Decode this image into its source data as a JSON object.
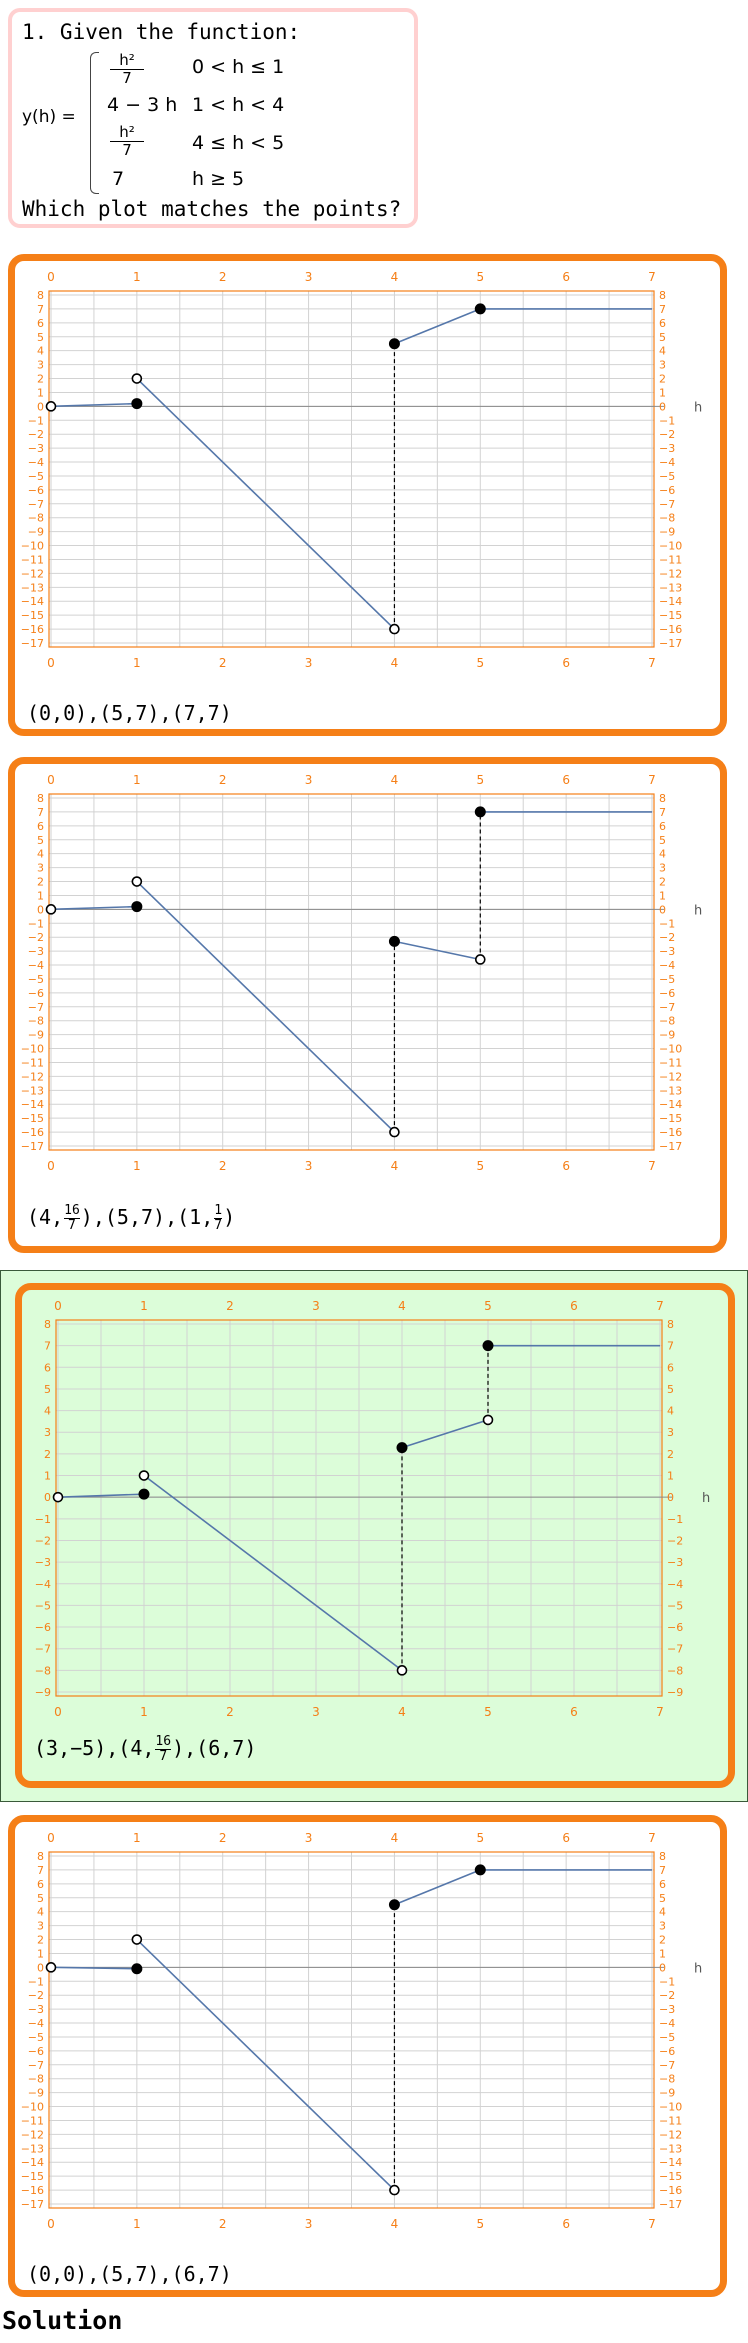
{
  "question": {
    "title": "1. Given the function:",
    "lhs": "y(h) =",
    "pieces": [
      {
        "expr_num": "h²",
        "expr_den": "7",
        "cond": "0 < h ≤ 1"
      },
      {
        "expr": "4 − 3 h",
        "cond": "1 < h < 4"
      },
      {
        "expr_num": "h²",
        "expr_den": "7",
        "cond": "4 ≤ h < 5"
      },
      {
        "expr": "7",
        "cond": "h ≥ 5"
      }
    ],
    "ask": "Which plot matches the points?"
  },
  "chart_data": [
    {
      "type": "line",
      "x_ticks": [
        0,
        1,
        2,
        3,
        4,
        5,
        6,
        7
      ],
      "ylim": [
        -17,
        8
      ],
      "y_tick_step": 1,
      "y_axis_label": "h",
      "segments": [
        {
          "points": [
            [
              0,
              0
            ],
            [
              1,
              0.2
            ]
          ]
        },
        {
          "points": [
            [
              1,
              2
            ],
            [
              4,
              -16
            ]
          ]
        },
        {
          "points": [
            [
              4,
              4.5
            ],
            [
              5,
              7
            ]
          ]
        },
        {
          "points": [
            [
              5,
              7
            ],
            [
              7,
              7
            ]
          ]
        }
      ],
      "jumps": [
        [
          4,
          -16,
          4,
          4.5
        ]
      ],
      "open_points": [
        [
          0,
          0
        ],
        [
          1,
          2
        ],
        [
          4,
          -16
        ]
      ],
      "closed_points": [
        [
          1,
          0.2
        ],
        [
          4,
          4.5
        ],
        [
          5,
          7
        ]
      ],
      "caption": [
        {
          "t": "(0,0)"
        },
        {
          "t": ","
        },
        {
          "t": "(5,7)"
        },
        {
          "t": ","
        },
        {
          "t": "(7,7)"
        }
      ]
    },
    {
      "type": "line",
      "x_ticks": [
        0,
        1,
        2,
        3,
        4,
        5,
        6,
        7
      ],
      "ylim": [
        -17,
        8
      ],
      "y_tick_step": 1,
      "y_axis_label": "h",
      "segments": [
        {
          "points": [
            [
              0,
              0
            ],
            [
              1,
              0.2
            ]
          ]
        },
        {
          "points": [
            [
              1,
              2
            ],
            [
              4,
              -16
            ]
          ]
        },
        {
          "points": [
            [
              4,
              -2.3
            ],
            [
              5,
              -3.6
            ]
          ]
        },
        {
          "points": [
            [
              5,
              7
            ],
            [
              7,
              7
            ]
          ]
        }
      ],
      "jumps": [
        [
          4,
          -16,
          4,
          -2.3
        ],
        [
          5,
          -3.6,
          5,
          7
        ]
      ],
      "open_points": [
        [
          0,
          0
        ],
        [
          1,
          2
        ],
        [
          4,
          -16
        ],
        [
          5,
          -3.6
        ]
      ],
      "closed_points": [
        [
          1,
          0.2
        ],
        [
          4,
          -2.3
        ],
        [
          5,
          7
        ]
      ],
      "caption": [
        {
          "t": "(4,"
        },
        {
          "n": "16",
          "d": "7"
        },
        {
          "t": ")"
        },
        {
          "t": ","
        },
        {
          "t": "(5,7)"
        },
        {
          "t": ","
        },
        {
          "t": "(1,"
        },
        {
          "n": "1",
          "d": "7"
        },
        {
          "t": ")"
        }
      ]
    },
    {
      "type": "line",
      "x_ticks": [
        0,
        1,
        2,
        3,
        4,
        5,
        6,
        7
      ],
      "ylim": [
        -9,
        8
      ],
      "y_tick_step": 1,
      "y_axis_label": "h",
      "segments": [
        {
          "points": [
            [
              0,
              0
            ],
            [
              1,
              0.14
            ]
          ]
        },
        {
          "points": [
            [
              1,
              1
            ],
            [
              4,
              -8
            ]
          ]
        },
        {
          "points": [
            [
              4,
              2.29
            ],
            [
              5,
              3.57
            ]
          ]
        },
        {
          "points": [
            [
              5,
              7
            ],
            [
              7,
              7
            ]
          ]
        }
      ],
      "jumps": [
        [
          4,
          -8,
          4,
          2.29
        ],
        [
          5,
          3.57,
          5,
          7
        ]
      ],
      "open_points": [
        [
          0,
          0
        ],
        [
          1,
          1
        ],
        [
          4,
          -8
        ],
        [
          5,
          3.57
        ]
      ],
      "closed_points": [
        [
          1,
          0.14
        ],
        [
          4,
          2.29
        ],
        [
          5,
          7
        ]
      ],
      "caption": [
        {
          "t": "(3,−5)"
        },
        {
          "t": ","
        },
        {
          "t": "(4,"
        },
        {
          "n": "16",
          "d": "7"
        },
        {
          "t": ")"
        },
        {
          "t": ","
        },
        {
          "t": "(6,7)"
        }
      ]
    },
    {
      "type": "line",
      "x_ticks": [
        0,
        1,
        2,
        3,
        4,
        5,
        6,
        7
      ],
      "ylim": [
        -17,
        8
      ],
      "y_tick_step": 1,
      "y_axis_label": "h",
      "segments": [
        {
          "points": [
            [
              0,
              0
            ],
            [
              1,
              -0.1
            ]
          ]
        },
        {
          "points": [
            [
              1,
              2
            ],
            [
              4,
              -16
            ]
          ]
        },
        {
          "points": [
            [
              4,
              4.5
            ],
            [
              5,
              7
            ]
          ]
        },
        {
          "points": [
            [
              5,
              7
            ],
            [
              7,
              7
            ]
          ]
        }
      ],
      "jumps": [
        [
          4,
          -16,
          4,
          4.5
        ]
      ],
      "open_points": [
        [
          0,
          0
        ],
        [
          1,
          2
        ],
        [
          4,
          -16
        ]
      ],
      "closed_points": [
        [
          1,
          -0.1
        ],
        [
          4,
          4.5
        ],
        [
          5,
          7
        ]
      ],
      "caption": [
        {
          "t": "(0,0)"
        },
        {
          "t": ","
        },
        {
          "t": "(5,7)"
        },
        {
          "t": ","
        },
        {
          "t": "(6,7)"
        }
      ]
    }
  ],
  "solution_label": "Solution",
  "colors": {
    "panel_border": "#f57f17",
    "axis_orange": "#f57f17",
    "line": "#5577aa",
    "correct_bg": "#dcfdd9",
    "question_border": "#ffd0d0"
  }
}
